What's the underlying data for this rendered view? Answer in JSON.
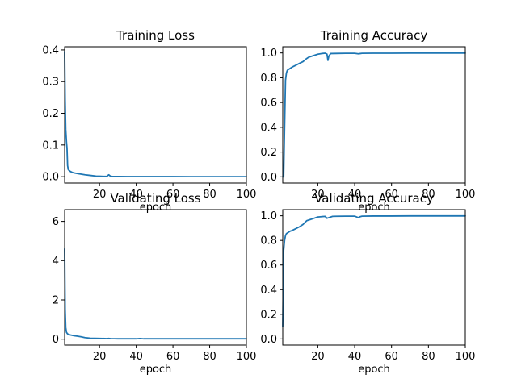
{
  "chart_data": [
    {
      "type": "line",
      "title": "Training Loss",
      "xlabel": "epoch",
      "xlim": [
        1,
        100
      ],
      "ylim": [
        -0.02,
        0.41
      ],
      "xticks": [
        20,
        40,
        60,
        80,
        100
      ],
      "yticks": [
        0.0,
        0.1,
        0.2,
        0.3,
        0.4
      ],
      "ytick_labels": [
        "0.0",
        "0.1",
        "0.2",
        "0.3",
        "0.4"
      ],
      "grid": false,
      "series": [
        {
          "color": "#1f77b4",
          "x": [
            1,
            1.3,
            1.6,
            2,
            2.3,
            2.6,
            3,
            4,
            5,
            6,
            8,
            10,
            12,
            15,
            18,
            20,
            22,
            24,
            25,
            25.5,
            26,
            27,
            30,
            35,
            40,
            50,
            60,
            70,
            80,
            90,
            100
          ],
          "values": [
            0.395,
            0.24,
            0.15,
            0.11,
            0.09,
            0.035,
            0.022,
            0.017,
            0.014,
            0.012,
            0.01,
            0.008,
            0.006,
            0.004,
            0.002,
            0.0015,
            0.001,
            0.001,
            0.006,
            0.004,
            0.001,
            0.0008,
            0.0006,
            0.0004,
            0.0003,
            0.0002,
            0.0002,
            0.0001,
            0.0001,
            0.0001,
            0.0001
          ]
        }
      ]
    },
    {
      "type": "line",
      "title": "Training Accuracy",
      "xlabel": "epoch",
      "xlim": [
        1,
        100
      ],
      "ylim": [
        -0.05,
        1.05
      ],
      "xticks": [
        20,
        40,
        60,
        80,
        100
      ],
      "yticks": [
        0.0,
        0.2,
        0.4,
        0.6,
        0.8,
        1.0
      ],
      "ytick_labels": [
        "0.0",
        "0.2",
        "0.4",
        "0.6",
        "0.8",
        "1.0"
      ],
      "grid": false,
      "series": [
        {
          "color": "#1f77b4",
          "x": [
            1,
            1.5,
            2,
            2.5,
            3,
            3.5,
            4,
            5,
            6,
            8,
            10,
            12,
            14,
            15,
            16,
            18,
            20,
            22,
            24,
            25,
            25.5,
            26,
            27,
            30,
            35,
            40,
            42,
            43,
            44,
            50,
            60,
            70,
            80,
            90,
            100
          ],
          "values": [
            0.0,
            0.0,
            0.4,
            0.78,
            0.84,
            0.86,
            0.865,
            0.875,
            0.885,
            0.9,
            0.915,
            0.93,
            0.955,
            0.965,
            0.97,
            0.98,
            0.99,
            0.995,
            0.998,
            0.99,
            0.94,
            0.975,
            0.995,
            0.996,
            0.997,
            0.997,
            0.993,
            0.995,
            0.997,
            0.998,
            0.998,
            0.999,
            0.999,
            0.999,
            0.999
          ]
        }
      ]
    },
    {
      "type": "line",
      "title": "Validating Loss",
      "xlabel": "epoch",
      "xlim": [
        1,
        100
      ],
      "ylim": [
        -0.3,
        6.6
      ],
      "xticks": [
        20,
        40,
        60,
        80,
        100
      ],
      "yticks": [
        0,
        2,
        4,
        6
      ],
      "ytick_labels": [
        "0",
        "2",
        "4",
        "6"
      ],
      "grid": false,
      "series": [
        {
          "color": "#1f77b4",
          "x": [
            1,
            1.3,
            1.6,
            2,
            2.5,
            3,
            4,
            5,
            6,
            8,
            10,
            12,
            15,
            20,
            24,
            25,
            26,
            30,
            40,
            42,
            44,
            50,
            60,
            80,
            100
          ],
          "values": [
            4.6,
            1.5,
            0.6,
            0.35,
            0.28,
            0.25,
            0.22,
            0.2,
            0.18,
            0.15,
            0.12,
            0.08,
            0.05,
            0.04,
            0.03,
            0.04,
            0.03,
            0.02,
            0.02,
            0.035,
            0.02,
            0.02,
            0.02,
            0.02,
            0.02
          ]
        }
      ]
    },
    {
      "type": "line",
      "title": "Validating  Accuracy",
      "xlabel": "epoch",
      "xlim": [
        1,
        100
      ],
      "ylim": [
        -0.05,
        1.05
      ],
      "xticks": [
        20,
        40,
        60,
        80,
        100
      ],
      "yticks": [
        0.0,
        0.2,
        0.4,
        0.6,
        0.8,
        1.0
      ],
      "ytick_labels": [
        "0.0",
        "0.2",
        "0.4",
        "0.6",
        "0.8",
        "1.0"
      ],
      "grid": false,
      "series": [
        {
          "color": "#1f77b4",
          "x": [
            1,
            1.5,
            2,
            2.5,
            3,
            4,
            5,
            6,
            8,
            10,
            12,
            14,
            15,
            16,
            18,
            20,
            22,
            24,
            25,
            26,
            28,
            30,
            35,
            40,
            42,
            43,
            44,
            50,
            60,
            70,
            80,
            90,
            100
          ],
          "values": [
            0.1,
            0.72,
            0.8,
            0.84,
            0.855,
            0.865,
            0.875,
            0.88,
            0.895,
            0.91,
            0.93,
            0.96,
            0.965,
            0.97,
            0.98,
            0.99,
            0.993,
            0.995,
            0.98,
            0.985,
            0.995,
            0.996,
            0.997,
            0.997,
            0.985,
            0.993,
            0.997,
            0.998,
            0.998,
            0.999,
            0.999,
            0.999,
            0.999
          ]
        }
      ]
    }
  ]
}
